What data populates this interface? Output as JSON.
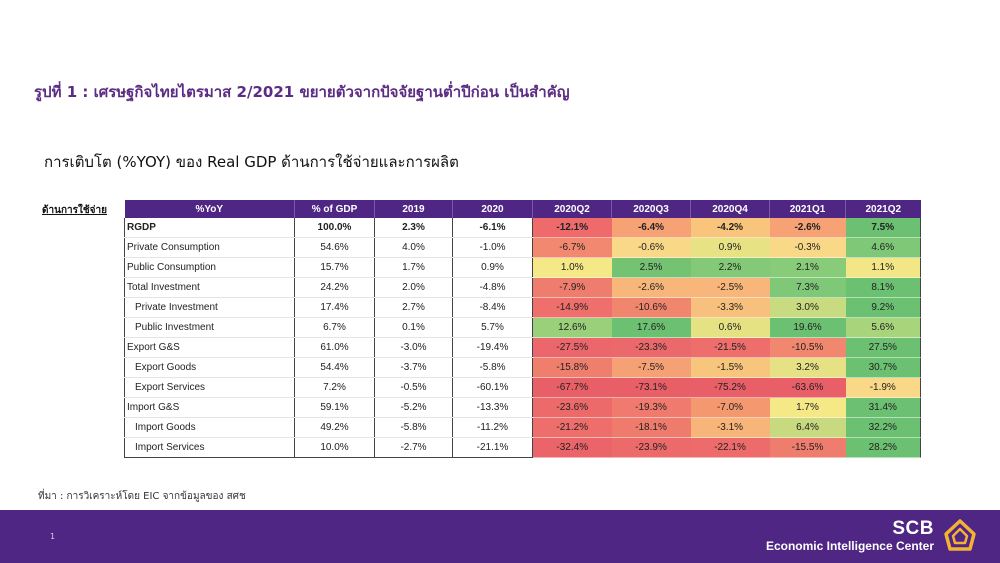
{
  "title": "รูปที่ 1 : เศรษฐกิจไทยไตรมาส 2/2021 ขยายตัวจากปัจจัยฐานต่ำปีก่อน เป็นสำคัญ",
  "subtitle": "การเติบโต (%YOY) ของ Real GDP ด้านการใช้จ่ายและการผลิต",
  "side_label": "ด้านการใช้จ่าย",
  "table": {
    "headers": [
      "%YoY",
      "% of GDP",
      "2019",
      "2020",
      "2020Q2",
      "2020Q3",
      "2020Q4",
      "2021Q1",
      "2021Q2"
    ],
    "rows": [
      {
        "label": "RGDP",
        "cells": [
          "100.0%",
          "2.3%",
          "-6.1%",
          "-12.1%",
          "-6.4%",
          "-4.2%",
          "-2.6%",
          "7.5%"
        ]
      },
      {
        "label": "Private Consumption",
        "cells": [
          "54.6%",
          "4.0%",
          "-1.0%",
          "-6.7%",
          "-0.6%",
          "0.9%",
          "-0.3%",
          "4.6%"
        ]
      },
      {
        "label": "Public Consumption",
        "cells": [
          "15.7%",
          "1.7%",
          "0.9%",
          "1.0%",
          "2.5%",
          "2.2%",
          "2.1%",
          "1.1%"
        ]
      },
      {
        "label": "Total Investment",
        "cells": [
          "24.2%",
          "2.0%",
          "-4.8%",
          "-7.9%",
          "-2.6%",
          "-2.5%",
          "7.3%",
          "8.1%"
        ]
      },
      {
        "label": "Private Investment",
        "cells": [
          "17.4%",
          "2.7%",
          "-8.4%",
          "-14.9%",
          "-10.6%",
          "-3.3%",
          "3.0%",
          "9.2%"
        ]
      },
      {
        "label": "Public Investment",
        "cells": [
          "6.7%",
          "0.1%",
          "5.7%",
          "12.6%",
          "17.6%",
          "0.6%",
          "19.6%",
          "5.6%"
        ]
      },
      {
        "label": "Export G&S",
        "cells": [
          "61.0%",
          "-3.0%",
          "-19.4%",
          "-27.5%",
          "-23.3%",
          "-21.5%",
          "-10.5%",
          "27.5%"
        ]
      },
      {
        "label": "Export Goods",
        "cells": [
          "54.4%",
          "-3.7%",
          "-5.8%",
          "-15.8%",
          "-7.5%",
          "-1.5%",
          "3.2%",
          "30.7%"
        ]
      },
      {
        "label": "Export Services",
        "cells": [
          "7.2%",
          "-0.5%",
          "-60.1%",
          "-67.7%",
          "-73.1%",
          "-75.2%",
          "-63.6%",
          "-1.9%"
        ]
      },
      {
        "label": "Import G&S",
        "cells": [
          "59.1%",
          "-5.2%",
          "-13.3%",
          "-23.6%",
          "-19.3%",
          "-7.0%",
          "1.7%",
          "31.4%"
        ]
      },
      {
        "label": "Import Goods",
        "cells": [
          "49.2%",
          "-5.8%",
          "-11.2%",
          "-21.2%",
          "-18.1%",
          "-3.1%",
          "6.4%",
          "32.2%"
        ]
      },
      {
        "label": "Import Services",
        "cells": [
          "10.0%",
          "-2.7%",
          "-21.1%",
          "-32.4%",
          "-23.9%",
          "-22.1%",
          "-15.5%",
          "28.2%"
        ]
      }
    ],
    "heat_colors": [
      [
        "#ef6b6b",
        "#f7a274",
        "#f9c57c",
        "#f7a274",
        "#6cc071"
      ],
      [
        "#f2886f",
        "#f9d988",
        "#e7e283",
        "#f9d988",
        "#7ec877"
      ],
      [
        "#f5e887",
        "#74c272",
        "#84c978",
        "#88cb78",
        "#f2e686"
      ],
      [
        "#ef7d6d",
        "#f8b67a",
        "#f8b67a",
        "#7ec877",
        "#6cc071"
      ],
      [
        "#ee6f6c",
        "#f1866f",
        "#f8c07d",
        "#c9db80",
        "#6cc071"
      ],
      [
        "#9bd07b",
        "#6cc071",
        "#e5e284",
        "#6cc071",
        "#a8d47c"
      ],
      [
        "#ec676b",
        "#ec696b",
        "#ed6e6b",
        "#f2876f",
        "#6cc071"
      ],
      [
        "#ef7e6d",
        "#f6a175",
        "#f8c57c",
        "#e5e184",
        "#6cc071"
      ],
      [
        "#e95f68",
        "#e95f68",
        "#e95f68",
        "#e95f68",
        "#f9d988"
      ],
      [
        "#ed6a6b",
        "#ef7a6d",
        "#f4996f",
        "#f5e887",
        "#6cc071"
      ],
      [
        "#ed6e6b",
        "#ef7b6d",
        "#f7b57a",
        "#c7da80",
        "#6cc071"
      ],
      [
        "#eb646a",
        "#ed6a6b",
        "#ed6c6b",
        "#ef7d6d",
        "#6cc071"
      ]
    ]
  },
  "source": "ที่มา : การวิเคราะห์โดย EIC จากข้อมูลของ สศช",
  "footer": {
    "page_number": "1",
    "brand": "SCB",
    "brand_sub": "Economic Intelligence Center"
  }
}
